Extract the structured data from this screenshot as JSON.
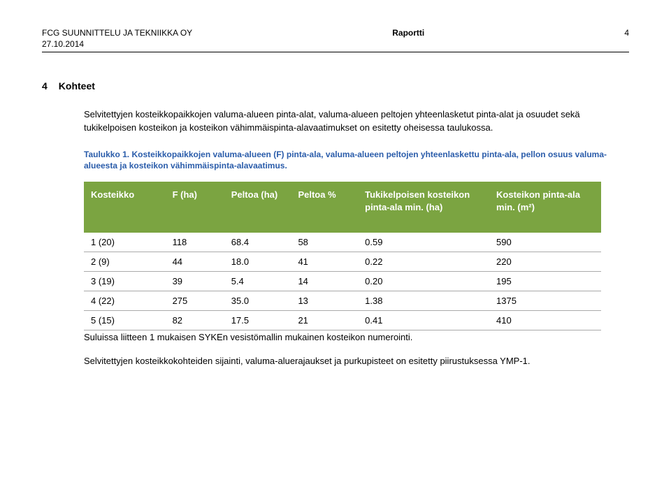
{
  "header": {
    "company": "FCG SUUNNITTELU JA TEKNIIKKA OY",
    "doc_type": "Raportti",
    "page_num": "4",
    "date": "27.10.2014"
  },
  "section": {
    "number": "4",
    "title": "Kohteet",
    "intro": "Selvitettyjen kosteikkopaikkojen valuma-alueen pinta-alat, valuma-alueen peltojen yhteenlasketut pinta-alat ja osuudet sekä tukikelpoisen kosteikon ja kosteikon vähimmäispinta-alavaatimukset on esitetty oheisessa taulukossa."
  },
  "table": {
    "caption_label": "Taulukko 1.",
    "caption_text": "Kosteikkopaikkojen valuma-alueen (F) pinta-ala, valuma-alueen peltojen yhteenlaskettu pinta-ala, pellon osuus valuma-alueesta ja kosteikon vähimmäispinta-alavaatimus.",
    "columns": [
      "Kosteikko",
      "F (ha)",
      "Peltoa (ha)",
      "Peltoa %",
      "Tukikelpoisen kosteikon pinta-ala min. (ha)",
      "Kosteikon pinta-ala min. (m²)"
    ],
    "rows": [
      [
        "1 (20)",
        "118",
        "68.4",
        "58",
        "0.59",
        "590"
      ],
      [
        "2 (9)",
        "44",
        "18.0",
        "41",
        "0.22",
        "220"
      ],
      [
        "3 (19)",
        "39",
        "5.4",
        "14",
        "0.20",
        "195"
      ],
      [
        "4 (22)",
        "275",
        "35.0",
        "13",
        "1.38",
        "1375"
      ],
      [
        "5 (15)",
        "82",
        "17.5",
        "21",
        "0.41",
        "410"
      ]
    ],
    "footnote": "Suluissa liitteen 1 mukaisen SYKEn vesistömallin mukainen kosteikon numerointi.",
    "closing": "Selvitettyjen kosteikkokohteiden sijainti, valuma-aluerajaukset ja purkupisteet on esitetty piirustuksessa YMP-1.",
    "header_bg": "#7ba441",
    "header_fg": "#ffffff",
    "caption_color": "#2a5caa",
    "col_widths": [
      "110",
      "80",
      "90",
      "90",
      "200",
      "170"
    ]
  }
}
